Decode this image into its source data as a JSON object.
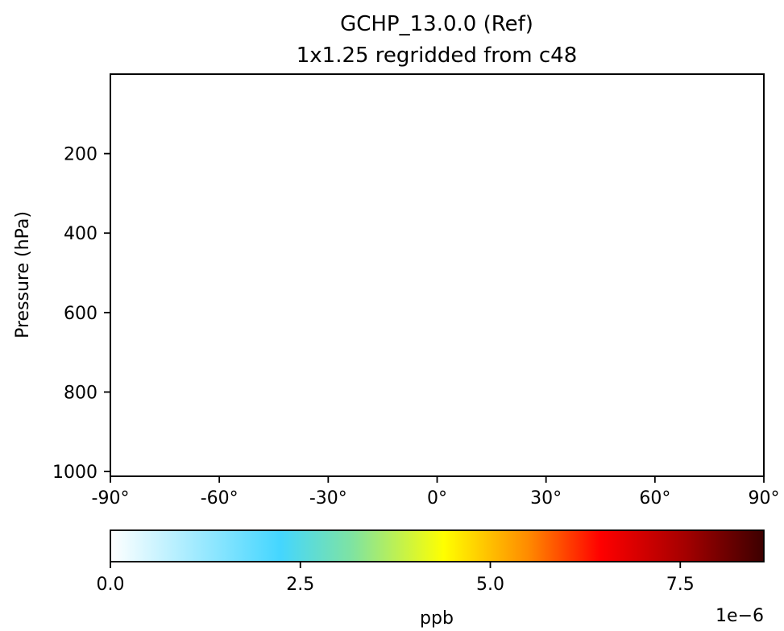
{
  "chart_data": {
    "type": "heatmap",
    "title_line1": "GCHP_13.0.0 (Ref)",
    "title_line2": "1x1.25 regridded from c48",
    "xlabel": "",
    "ylabel": "Pressure (hPa)",
    "xlim": [
      -90,
      90
    ],
    "xticks": [
      -90,
      -60,
      -30,
      0,
      30,
      60,
      90
    ],
    "xtick_labels": [
      "-90°",
      "-60°",
      "-30°",
      "0°",
      "30°",
      "60°",
      "90°"
    ],
    "ylim": [
      1012,
      0
    ],
    "yticks": [
      200,
      400,
      600,
      800,
      1000
    ],
    "ytick_labels": [
      "200",
      "400",
      "600",
      "800",
      "1000"
    ],
    "y_axis_inverted": true,
    "field_value_ppb": 0,
    "grid": false,
    "colorbar": {
      "label": "ppb",
      "orientation": "horizontal",
      "placement": "bottom",
      "range": [
        0,
        8.6e-06
      ],
      "ticks": [
        0,
        2.5e-06,
        5e-06,
        7.5e-06
      ],
      "tick_labels": [
        "0.0",
        "2.5",
        "5.0",
        "7.5"
      ],
      "offset_text": "1e−6",
      "colormap": "WhGrYlRd",
      "colormap_stops": [
        {
          "pos": 0.0,
          "color": "#ffffff"
        },
        {
          "pos": 0.26,
          "color": "#44d6ff"
        },
        {
          "pos": 0.37,
          "color": "#7fe3a1"
        },
        {
          "pos": 0.51,
          "color": "#ffff00"
        },
        {
          "pos": 0.64,
          "color": "#ff8a00"
        },
        {
          "pos": 0.75,
          "color": "#ff0000"
        },
        {
          "pos": 0.88,
          "color": "#a40000"
        },
        {
          "pos": 1.0,
          "color": "#3c0000"
        }
      ]
    }
  }
}
